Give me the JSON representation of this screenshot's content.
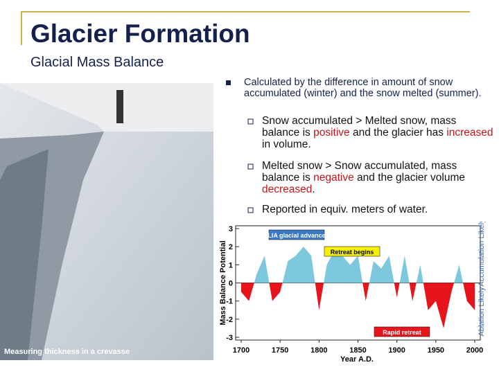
{
  "header": {
    "title": "Glacier Formation",
    "subtitle": "Glacial Mass Balance"
  },
  "photo": {
    "caption": "Measuring thickness in a crevasse"
  },
  "bullets": [
    {
      "parts": [
        "Calculated by the difference in amount of snow accumulated (winter) and the snow melted (summer)."
      ],
      "sub": [
        {
          "parts": [
            "Snow accumulated > Melted snow, mass balance is ",
            "positive",
            " and the glacier has ",
            "increased",
            " in volume."
          ]
        },
        {
          "parts": [
            "Melted snow > Snow accumulated, mass balance is ",
            "negative",
            " and the glacier volume ",
            "decreased",
            "."
          ]
        },
        {
          "parts": [
            "Reported in equiv. meters of water."
          ]
        }
      ]
    }
  ],
  "chart_data": {
    "type": "area",
    "y_label": "Mass Balance Potential",
    "x_label": "Year A.D.",
    "right_labels": [
      "Accumulation Likely",
      "Ablation Likely"
    ],
    "annotations": [
      "LIA glacial advance",
      "Retreat begins",
      "Rapid retreat"
    ],
    "x": [
      1700,
      1710,
      1720,
      1730,
      1740,
      1750,
      1760,
      1770,
      1780,
      1790,
      1800,
      1810,
      1820,
      1830,
      1840,
      1850,
      1860,
      1870,
      1880,
      1890,
      1900,
      1910,
      1920,
      1930,
      1940,
      1950,
      1960,
      1970,
      1980,
      1990,
      2000
    ],
    "series": [
      {
        "positive_color": "#7ec8de",
        "negative_color": "#e8141c",
        "values": [
          -0.5,
          -1,
          0.5,
          1.5,
          -1,
          -0.5,
          1.2,
          1.5,
          2.0,
          1.5,
          -1.5,
          1.0,
          1.8,
          1.5,
          1.0,
          1.5,
          -1,
          1.2,
          0.8,
          1.5,
          -0.8,
          1.5,
          -1.0,
          1.0,
          -1.5,
          -1.0,
          -2.5,
          -0.5,
          1.0,
          -1.0,
          -1.5
        ]
      }
    ],
    "xlim": [
      1700,
      2000
    ],
    "xticks": [
      1700,
      1750,
      1800,
      1850,
      1900,
      1950,
      2000
    ],
    "ylim": [
      -3,
      3
    ],
    "yticks": [
      -3,
      -2,
      -1,
      0,
      1,
      2,
      3
    ]
  }
}
